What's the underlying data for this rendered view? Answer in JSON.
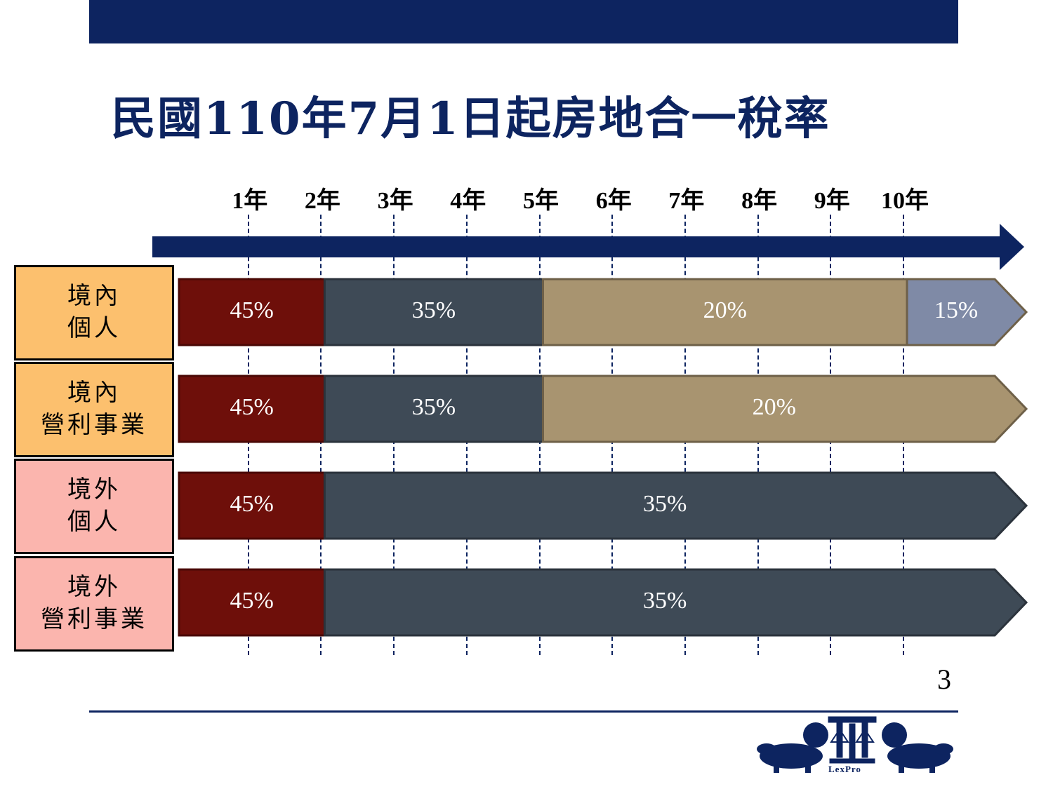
{
  "slide": {
    "title": "民國110年7月1日起房地合一稅率",
    "page_number": "3",
    "logo_text": "LexPro"
  },
  "timeline": {
    "years": [
      "1年",
      "2年",
      "3年",
      "4年",
      "5年",
      "6年",
      "7年",
      "8年",
      "9年",
      "10年"
    ]
  },
  "rows": [
    {
      "label_lines": [
        "境內",
        "個人"
      ],
      "label_color": "#fcc06e",
      "segments": [
        {
          "rate": "45%",
          "from_year": 0,
          "to_year": 2,
          "color": "#6e0f0a"
        },
        {
          "rate": "35%",
          "from_year": 2,
          "to_year": 5,
          "color": "#3e4a56"
        },
        {
          "rate": "20%",
          "from_year": 5,
          "to_year": 10,
          "color": "#a89470"
        },
        {
          "rate": "15%",
          "from_year": 10,
          "to_year": 11,
          "color": "#7f8aa6",
          "arrow": true
        }
      ]
    },
    {
      "label_lines": [
        "境內",
        "營利事業"
      ],
      "label_color": "#fcc06e",
      "segments": [
        {
          "rate": "45%",
          "from_year": 0,
          "to_year": 2,
          "color": "#6e0f0a"
        },
        {
          "rate": "35%",
          "from_year": 2,
          "to_year": 5,
          "color": "#3e4a56"
        },
        {
          "rate": "20%",
          "from_year": 5,
          "to_year": 11,
          "color": "#a89470",
          "arrow": true
        }
      ]
    },
    {
      "label_lines": [
        "境外",
        "個人"
      ],
      "label_color": "#fbb5ae",
      "segments": [
        {
          "rate": "45%",
          "from_year": 0,
          "to_year": 2,
          "color": "#6e0f0a"
        },
        {
          "rate": "35%",
          "from_year": 2,
          "to_year": 11,
          "color": "#3e4a56",
          "arrow": true
        }
      ]
    },
    {
      "label_lines": [
        "境外",
        "營利事業"
      ],
      "label_color": "#fbb5ae",
      "segments": [
        {
          "rate": "45%",
          "from_year": 0,
          "to_year": 2,
          "color": "#6e0f0a"
        },
        {
          "rate": "35%",
          "from_year": 2,
          "to_year": 11,
          "color": "#3e4a56",
          "arrow": true
        }
      ]
    }
  ],
  "colors": {
    "navy": "#0d2460"
  }
}
